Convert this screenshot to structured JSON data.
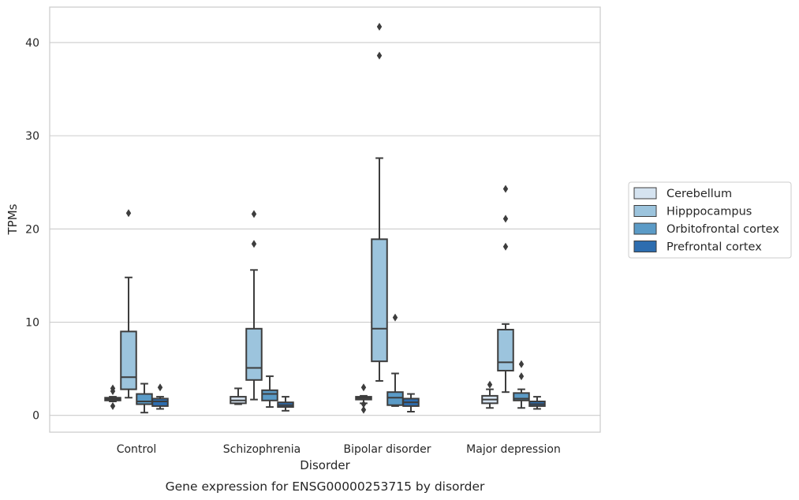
{
  "chart_data": {
    "type": "box",
    "caption": "Gene expression for ENSG00000253715 by disorder",
    "xlabel": "Disorder",
    "ylabel": "TPMs",
    "ylim": [
      -1.8,
      43.8
    ],
    "yticks": [
      0,
      10,
      20,
      30,
      40
    ],
    "grid": true,
    "legend_position": "right",
    "categories": [
      "Control",
      "Schizophrenia",
      "Bipolar disorder",
      "Major depression"
    ],
    "series": [
      {
        "name": "Cerebellum",
        "color": "#d5e3f0",
        "boxes": [
          {
            "category": "Control",
            "whisker_low": 1.5,
            "q1": 1.6,
            "median": 1.75,
            "q3": 1.9,
            "whisker_high": 2.0,
            "outliers": [
              2.9,
              2.6,
              1.0
            ]
          },
          {
            "category": "Schizophrenia",
            "whisker_low": 1.2,
            "q1": 1.3,
            "median": 1.6,
            "q3": 2.0,
            "whisker_high": 2.9,
            "outliers": []
          },
          {
            "category": "Bipolar disorder",
            "whisker_low": 1.3,
            "q1": 1.7,
            "median": 1.85,
            "q3": 2.0,
            "whisker_high": 2.1,
            "outliers": [
              3.0,
              1.2,
              0.6
            ]
          },
          {
            "category": "Major depression",
            "whisker_low": 0.8,
            "q1": 1.3,
            "median": 1.7,
            "q3": 2.1,
            "whisker_high": 2.8,
            "outliers": [
              3.3
            ]
          }
        ]
      },
      {
        "name": "Hipppocampus",
        "color": "#9cc4dd",
        "boxes": [
          {
            "category": "Control",
            "whisker_low": 1.9,
            "q1": 2.8,
            "median": 4.1,
            "q3": 9.0,
            "whisker_high": 14.8,
            "outliers": [
              21.7
            ]
          },
          {
            "category": "Schizophrenia",
            "whisker_low": 1.7,
            "q1": 3.8,
            "median": 5.1,
            "q3": 9.3,
            "whisker_high": 15.6,
            "outliers": [
              21.6,
              18.4
            ]
          },
          {
            "category": "Bipolar disorder",
            "whisker_low": 3.7,
            "q1": 5.8,
            "median": 9.3,
            "q3": 18.9,
            "whisker_high": 27.6,
            "outliers": [
              41.7,
              38.6
            ]
          },
          {
            "category": "Major depression",
            "whisker_low": 2.5,
            "q1": 4.8,
            "median": 5.7,
            "q3": 9.2,
            "whisker_high": 9.8,
            "outliers": [
              24.3,
              21.1,
              18.1
            ]
          }
        ]
      },
      {
        "name": "Orbitofrontal cortex",
        "color": "#5b9bc7",
        "boxes": [
          {
            "category": "Control",
            "whisker_low": 0.3,
            "q1": 1.2,
            "median": 1.5,
            "q3": 2.3,
            "whisker_high": 3.4,
            "outliers": []
          },
          {
            "category": "Schizophrenia",
            "whisker_low": 0.9,
            "q1": 1.6,
            "median": 2.3,
            "q3": 2.7,
            "whisker_high": 4.2,
            "outliers": []
          },
          {
            "category": "Bipolar disorder",
            "whisker_low": 1.0,
            "q1": 1.1,
            "median": 1.9,
            "q3": 2.5,
            "whisker_high": 4.5,
            "outliers": [
              10.5
            ]
          },
          {
            "category": "Major depression",
            "whisker_low": 0.8,
            "q1": 1.6,
            "median": 1.8,
            "q3": 2.4,
            "whisker_high": 2.8,
            "outliers": [
              5.5,
              4.2
            ]
          }
        ]
      },
      {
        "name": "Prefrontal cortex",
        "color": "#2d6daf",
        "boxes": [
          {
            "category": "Control",
            "whisker_low": 0.7,
            "q1": 1.0,
            "median": 1.5,
            "q3": 1.8,
            "whisker_high": 2.0,
            "outliers": [
              3.0
            ]
          },
          {
            "category": "Schizophrenia",
            "whisker_low": 0.5,
            "q1": 0.9,
            "median": 1.1,
            "q3": 1.4,
            "whisker_high": 2.0,
            "outliers": []
          },
          {
            "category": "Bipolar disorder",
            "whisker_low": 0.4,
            "q1": 1.0,
            "median": 1.4,
            "q3": 1.8,
            "whisker_high": 2.3,
            "outliers": []
          },
          {
            "category": "Major depression",
            "whisker_low": 0.7,
            "q1": 1.0,
            "median": 1.2,
            "q3": 1.5,
            "whisker_high": 2.0,
            "outliers": []
          }
        ]
      }
    ]
  }
}
